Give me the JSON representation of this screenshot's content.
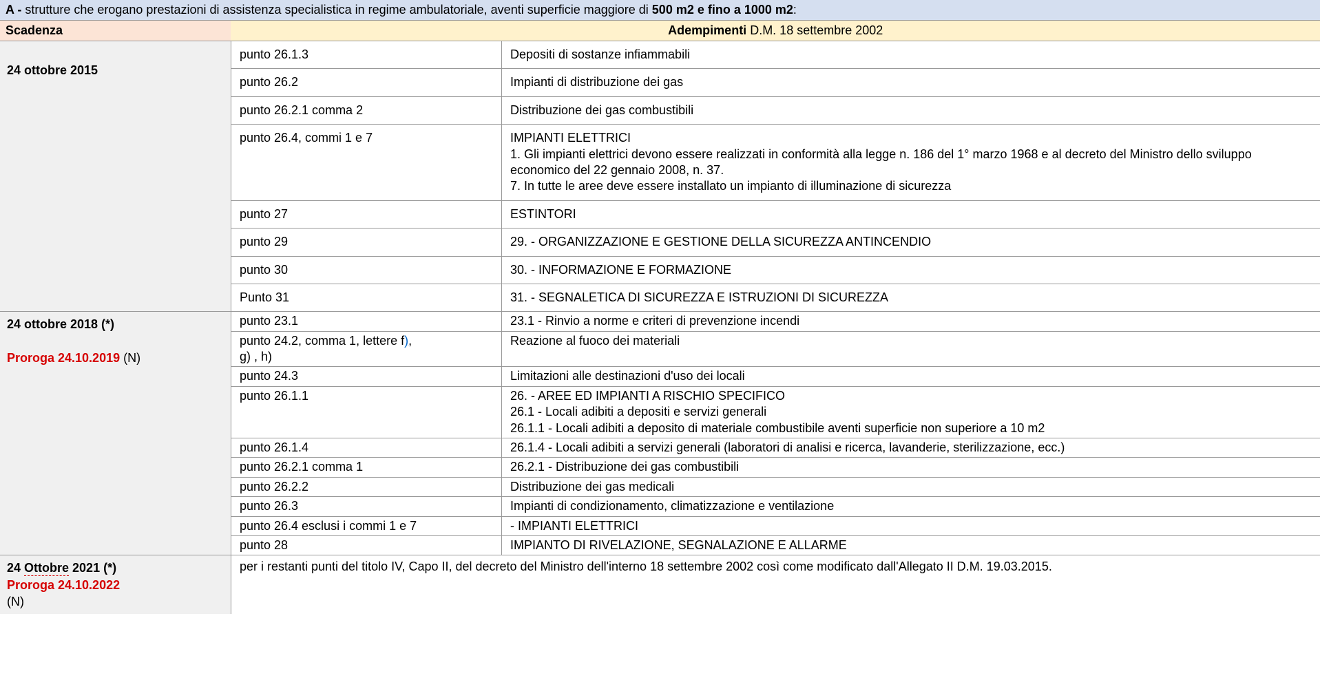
{
  "title": {
    "prefix_bold": "A - ",
    "mid": "strutture che erogano prestazioni di assistenza specialistica in regime ambulatoriale, aventi superficie maggiore di ",
    "size_bold": "500 m2 e fino a 1000 m2",
    "suffix": ":"
  },
  "headers": {
    "scadenza": "Scadenza",
    "adempimenti_bold": "Adempimenti",
    "adempimenti_rest": " D.M. 18 settembre 2002"
  },
  "section1": {
    "scadenza": "24 ottobre 2015",
    "rows": [
      {
        "punto": "punto 26.1.3",
        "desc": "Depositi di sostanze infiammabili"
      },
      {
        "punto": "punto 26.2",
        "desc": "Impianti di distribuzione dei gas"
      },
      {
        "punto": "punto 26.2.1 comma 2",
        "desc": "Distribuzione dei gas combustibili"
      },
      {
        "punto": "punto 26.4, commi 1 e 7",
        "desc": "IMPIANTI ELETTRICI\n1. Gli impianti elettrici devono essere realizzati in conformità alla legge n. 186 del 1° marzo 1968 e al decreto del Ministro dello sviluppo economico del 22 gennaio 2008, n. 37.\n7. In tutte le aree deve essere installato un impianto di illuminazione di sicurezza"
      },
      {
        "punto": "punto 27",
        "desc": "ESTINTORI"
      },
      {
        "punto": "punto 29",
        "desc": "29. - ORGANIZZAZIONE E GESTIONE DELLA SICUREZZA ANTINCENDIO"
      },
      {
        "punto": "punto 30",
        "desc": "30. - INFORMAZIONE E FORMAZIONE"
      },
      {
        "punto": "Punto 31",
        "desc": "31. - SEGNALETICA DI SICUREZZA E ISTRUZIONI DI SICUREZZA"
      }
    ]
  },
  "section2": {
    "scad_line1": "24 ottobre 2018 (*)",
    "scad_proroga": "Proroga 24.10.2019",
    "scad_n": " (N)",
    "rows": [
      {
        "punto": "punto 23.1",
        "desc": "23.1 - Rinvio a norme e criteri di prevenzione incendi"
      },
      {
        "punto_pre": "punto 24.2, comma 1, lettere f",
        "punto_link": ")",
        "punto_comma": ", ",
        "punto_post": "g) , h)",
        "desc": "Reazione al fuoco dei materiali"
      },
      {
        "punto": "punto 24.3",
        "desc": "Limitazioni alle destinazioni d'uso dei locali"
      },
      {
        "punto": "punto 26.1.1",
        "desc": "26. - AREE ED IMPIANTI A RISCHIO SPECIFICO\n26.1 - Locali adibiti a depositi e servizi generali\n26.1.1 - Locali adibiti a deposito di materiale combustibile aventi superficie non superiore a 10 m2"
      },
      {
        "punto": "punto 26.1.4",
        "desc": "26.1.4 - Locali adibiti a servizi generali (laboratori di analisi e ricerca, lavanderie, sterilizzazione, ecc.)"
      },
      {
        "punto": "punto 26.2.1 comma 1",
        "desc": "26.2.1 - Distribuzione dei gas combustibili"
      },
      {
        "punto": "punto 26.2.2",
        "desc": "Distribuzione dei gas medicali"
      },
      {
        "punto": "punto 26.3",
        "desc": "Impianti di condizionamento, climatizzazione e ventilazione"
      },
      {
        "punto": "punto 26.4 esclusi i commi 1 e 7",
        "desc": "- IMPIANTI ELETTRICI"
      },
      {
        "punto": "punto 28",
        "desc": "IMPIANTO DI RIVELAZIONE, SEGNALAZIONE E ALLARME"
      }
    ]
  },
  "section3": {
    "scad_pre": "24 ",
    "scad_ott": "Ottobre",
    "scad_post": " 2021 (*)",
    "scad_proroga": "Proroga 24.10.2022",
    "scad_n": "(N)",
    "desc": "per i restanti punti del titolo IV, Capo II, del decreto del Ministro dell'interno 18 settembre 2002 così come modificato dall'Allegato II D.M. 19.03.2015."
  }
}
